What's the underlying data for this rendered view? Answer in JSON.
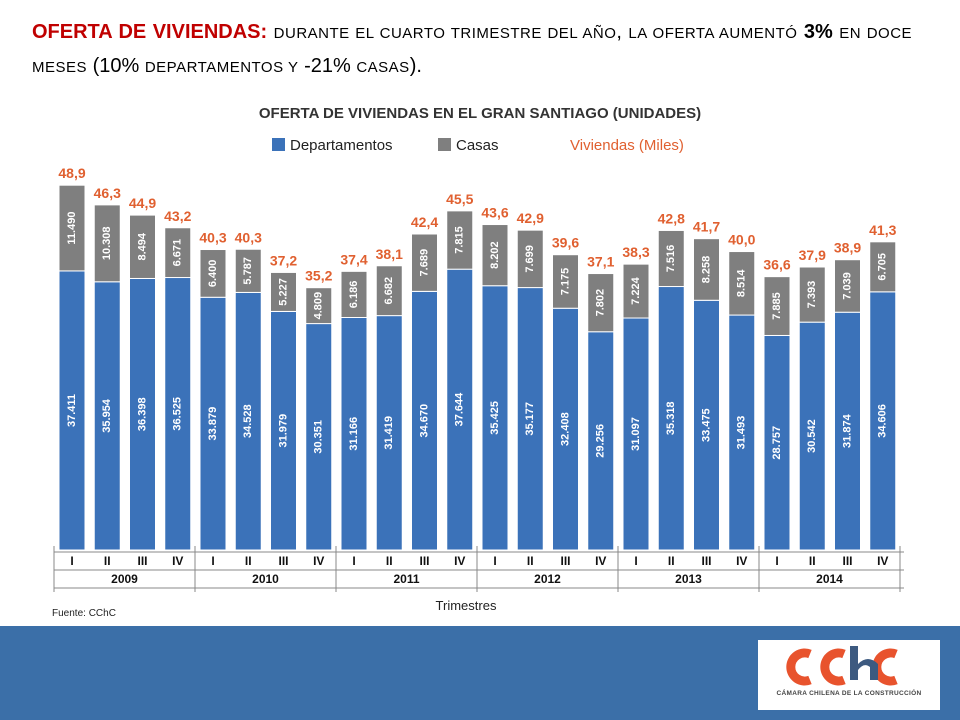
{
  "headline": {
    "lead": "OFERTA DE VIVIENDAS:",
    "part1": "durante el cuarto trimestre del año",
    "comma": ",",
    "part2": "la oferta aumentó",
    "pct_total": "3%",
    "part3": "en doce meses",
    "paren_open": "(",
    "pct_depto": "10%",
    "part4": "departamentos y",
    "pct_casas": "-21%",
    "part5": "casas",
    "paren_close": ")."
  },
  "colors": {
    "departamentos": "#3b72b9",
    "casas": "#7f7f7f",
    "viviendas": "#e06030",
    "headline_red": "#c00000",
    "band": "#3b6fa8"
  },
  "chart_data": {
    "type": "bar",
    "stacked": true,
    "title": "OFERTA DE VIVIENDAS EN EL GRAN SANTIAGO (UNIDADES)",
    "legend": [
      "Departamentos",
      "Casas",
      "Viviendas (Miles)"
    ],
    "xlabel": "Trimestres",
    "source": "Fuente: CChC",
    "quarters": [
      "I",
      "II",
      "III",
      "IV",
      "I",
      "II",
      "III",
      "IV",
      "I",
      "II",
      "III",
      "IV",
      "I",
      "II",
      "III",
      "IV",
      "I",
      "II",
      "III",
      "IV",
      "I",
      "II",
      "III",
      "IV"
    ],
    "years": [
      "2009",
      "2010",
      "2011",
      "2012",
      "2013",
      "2014"
    ],
    "departamentos": [
      37411,
      35954,
      36398,
      36525,
      33879,
      34528,
      31979,
      30351,
      31166,
      31419,
      34670,
      37644,
      35425,
      35177,
      32408,
      29256,
      31097,
      35318,
      33475,
      31493,
      28757,
      30542,
      31874,
      34606
    ],
    "departamentos_labels": [
      "37.411",
      "35.954",
      "36.398",
      "36.525",
      "33.879",
      "34.528",
      "31.979",
      "30.351",
      "31.166",
      "31.419",
      "34.670",
      "37.644",
      "35.425",
      "35.177",
      "32.408",
      "29.256",
      "31.097",
      "35.318",
      "33.475",
      "31.493",
      "28.757",
      "30.542",
      "31.874",
      "34.606"
    ],
    "casas": [
      11490,
      10308,
      8494,
      6671,
      6400,
      5787,
      5227,
      4809,
      6186,
      6682,
      7689,
      7815,
      8202,
      7699,
      7175,
      7802,
      7224,
      7516,
      8258,
      8514,
      7885,
      7393,
      7039,
      6705
    ],
    "casas_labels": [
      "11.490",
      "10.308",
      "8.494",
      "6.671",
      "6.400",
      "5.787",
      "5.227",
      "4.809",
      "6.186",
      "6.682",
      "7.689",
      "7.815",
      "8.202",
      "7.699",
      "7.175",
      "7.802",
      "7.224",
      "7.516",
      "8.258",
      "8.514",
      "7.885",
      "7.393",
      "7.039",
      "6.705"
    ],
    "viviendas_labels": [
      "48,9",
      "46,3",
      "44,9",
      "43,2",
      "40,3",
      "40,3",
      "37,2",
      "35,2",
      "37,4",
      "38,1",
      "42,4",
      "45,5",
      "43,6",
      "42,9",
      "39,6",
      "37,1",
      "38,3",
      "42,8",
      "41,7",
      "40,0",
      "36,6",
      "37,9",
      "38,9",
      "41,3"
    ],
    "ylim": [
      0,
      50000
    ]
  },
  "logo": {
    "mark": "cchc",
    "caption": "CÁMARA CHILENA DE LA CONSTRUCCIÓN"
  }
}
